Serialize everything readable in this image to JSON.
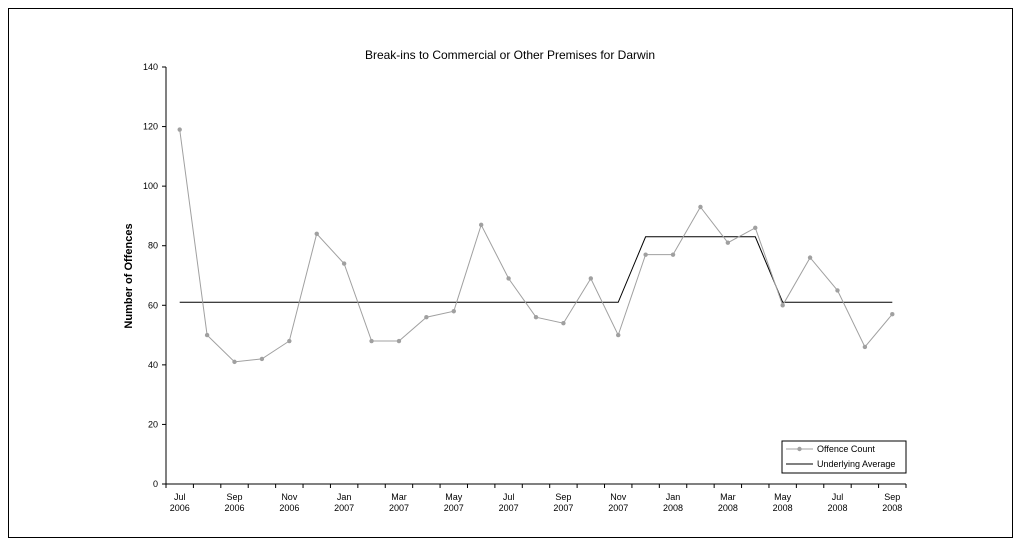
{
  "chart_data": {
    "type": "line",
    "title": "Break-ins to Commercial or Other Premises for Darwin",
    "ylabel": "Number of Offences",
    "xlabel": "",
    "ylim": [
      0,
      140
    ],
    "yticks": [
      0,
      20,
      40,
      60,
      80,
      100,
      120,
      140
    ],
    "x": [
      "Jul 2006",
      "Aug 2006",
      "Sep 2006",
      "Oct 2006",
      "Nov 2006",
      "Dec 2006",
      "Jan 2007",
      "Feb 2007",
      "Mar 2007",
      "Apr 2007",
      "May 2007",
      "Jun 2007",
      "Jul 2007",
      "Aug 2007",
      "Sep 2007",
      "Oct 2007",
      "Nov 2007",
      "Dec 2007",
      "Jan 2008",
      "Feb 2008",
      "Mar 2008",
      "Apr 2008",
      "May 2008",
      "Jun 2008",
      "Jul 2008",
      "Aug 2008",
      "Sep 2008"
    ],
    "x_tick_labels": [
      {
        "month": "Jul",
        "year": "2006"
      },
      {
        "month": "Sep",
        "year": "2006"
      },
      {
        "month": "Nov",
        "year": "2006"
      },
      {
        "month": "Jan",
        "year": "2007"
      },
      {
        "month": "Mar",
        "year": "2007"
      },
      {
        "month": "May",
        "year": "2007"
      },
      {
        "month": "Jul",
        "year": "2007"
      },
      {
        "month": "Sep",
        "year": "2007"
      },
      {
        "month": "Nov",
        "year": "2007"
      },
      {
        "month": "Jan",
        "year": "2008"
      },
      {
        "month": "Mar",
        "year": "2008"
      },
      {
        "month": "May",
        "year": "2008"
      },
      {
        "month": "Jul",
        "year": "2008"
      },
      {
        "month": "Sep",
        "year": "2008"
      }
    ],
    "series": [
      {
        "name": "Offence Count",
        "color": "#a0a0a0",
        "marker": "circle",
        "values": [
          119,
          50,
          41,
          42,
          48,
          84,
          74,
          48,
          48,
          56,
          58,
          87,
          69,
          56,
          54,
          69,
          50,
          77,
          77,
          93,
          81,
          86,
          60,
          76,
          65,
          46,
          57
        ]
      },
      {
        "name": "Underlying Average",
        "color": "#000000",
        "marker": "none",
        "values": [
          61,
          61,
          61,
          61,
          61,
          61,
          61,
          61,
          61,
          61,
          61,
          61,
          61,
          61,
          61,
          61,
          61,
          83,
          83,
          83,
          83,
          83,
          61,
          61,
          61,
          61,
          61
        ]
      }
    ],
    "legend_position": "bottom-right",
    "grid": false
  }
}
